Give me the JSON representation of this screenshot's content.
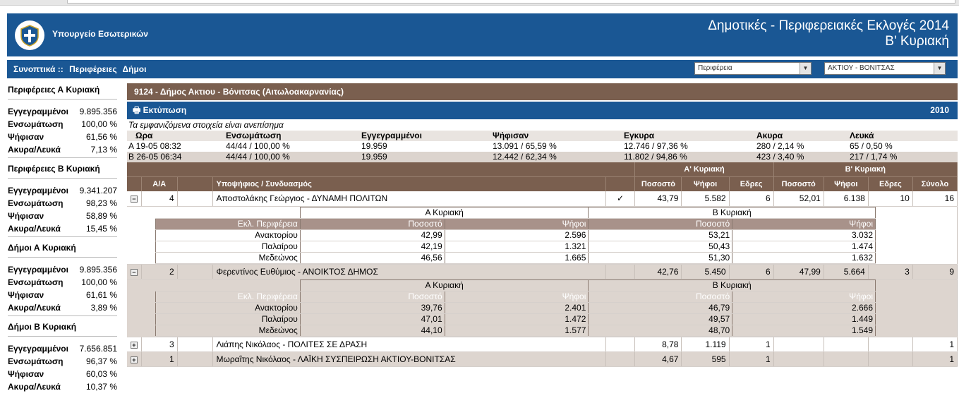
{
  "header": {
    "ministry": "Υπουργείο Εσωτερικών",
    "title_line1": "Δημοτικές - Περιφερειακές Εκλογές 2014",
    "title_line2": "Β' Κυριακή",
    "colors": {
      "primary": "#1a5794",
      "brown": "#7a5f4f"
    }
  },
  "nav": {
    "summary": "Συνοπτικά ::",
    "regions": "Περιφέρειες",
    "municipalities": "Δήμοι",
    "select_region": "Περιφέρεια",
    "select_municipality": "ΑΚΤΙΟΥ - ΒΟΝΙΤΣΑΣ"
  },
  "sidebar": {
    "sections": [
      {
        "title": "Περιφέρειες Α Κυριακή",
        "rows": [
          {
            "label": "Εγγεγραμμένοι",
            "value": "9.895.356"
          },
          {
            "label": "Ενσωμάτωση",
            "value": "100,00 %"
          },
          {
            "label": "Ψήφισαν",
            "value": "61,56 %"
          },
          {
            "label": "Ακυρα/Λευκά",
            "value": "7,13 %"
          }
        ]
      },
      {
        "title": "Περιφέρειες Β Κυριακή",
        "rows": [
          {
            "label": "Εγγεγραμμένοι",
            "value": "9.341.207"
          },
          {
            "label": "Ενσωμάτωση",
            "value": "98,23 %"
          },
          {
            "label": "Ψήφισαν",
            "value": "58,89 %"
          },
          {
            "label": "Ακυρα/Λευκά",
            "value": "15,45 %"
          }
        ]
      },
      {
        "title": "Δήμοι Α Κυριακή",
        "rows": [
          {
            "label": "Εγγεγραμμένοι",
            "value": "9.895.356"
          },
          {
            "label": "Ενσωμάτωση",
            "value": "100,00 %"
          },
          {
            "label": "Ψήφισαν",
            "value": "61,61 %"
          },
          {
            "label": "Ακυρα/Λευκά",
            "value": "3,89 %"
          }
        ]
      },
      {
        "title": "Δήμοι Β Κυριακή",
        "rows": [
          {
            "label": "Εγγεγραμμένοι",
            "value": "7.656.851"
          },
          {
            "label": "Ενσωμάτωση",
            "value": "96,37 %"
          },
          {
            "label": "Ψήφισαν",
            "value": "60,03 %"
          },
          {
            "label": "Ακυρα/Λευκά",
            "value": "10,37 %"
          }
        ]
      }
    ]
  },
  "main": {
    "district": "9124 - Δήμος Ακτιου - Βόνιτσας (Αιτωλοακαρνανίας)",
    "print": "Εκτύπωση",
    "year": "2010",
    "notice": "Τα εμφανιζόμενα στοιχεία είναι ανεπίσημα",
    "summary_headers": [
      "Ωρα",
      "Ενσωμάτωση",
      "Εγγεγραμμένοι",
      "Ψήφισαν",
      "Εγκυρα",
      "Ακυρα",
      "Λευκά"
    ],
    "summary_rows": [
      {
        "round": "Α",
        "time": "19-05 08:32",
        "integration": "44/44 / 100,00 %",
        "registered": "19.959",
        "voted": "13.091 / 65,59 %",
        "valid": "12.746 / 97,36 %",
        "invalid": "280 / 2,14 %",
        "blank": "65 / 0,50 %"
      },
      {
        "round": "Β",
        "time": "26-05 06:34",
        "integration": "44/44 / 100,00 %",
        "registered": "19.959",
        "voted": "12.442 / 62,34 %",
        "valid": "11.802 / 94,86 %",
        "invalid": "423 / 3,40 %",
        "blank": "217 / 1,74 %"
      }
    ],
    "results_headers": {
      "round_a": "Α' Κυριακή",
      "round_b": "Β' Κυριακή",
      "aa": "Α/Α",
      "candidate": "Υποψήφιος / Συνδυασμός",
      "pct": "Ποσοστό",
      "votes": "Ψήφοι",
      "seats": "Εδρες",
      "total": "Σύνολο"
    },
    "detail_headers": {
      "round_a": "Α Κυριακή",
      "round_b": "Β Κυριακή",
      "district": "Εκλ. Περιφέρεια",
      "pct": "Ποσοστό",
      "votes": "Ψήφοι"
    },
    "candidates": [
      {
        "expander": "⊟",
        "aa": "4",
        "name": "Αποστολάκης Γεώργιος - ΔΥΝΑΜΗ ΠΟΛΙΤΩΝ",
        "mark": "✓",
        "a_pct": "43,79",
        "a_votes": "5.582",
        "a_seats": "6",
        "b_pct": "52,01",
        "b_votes": "6.138",
        "b_seats": "10",
        "total": "16",
        "details": [
          {
            "district": "Ανακτορίου",
            "a_pct": "42,99",
            "a_votes": "2.596",
            "b_pct": "53,21",
            "b_votes": "3.032"
          },
          {
            "district": "Παλαίρου",
            "a_pct": "42,19",
            "a_votes": "1.321",
            "b_pct": "50,43",
            "b_votes": "1.474"
          },
          {
            "district": "Μεδεώνος",
            "a_pct": "46,56",
            "a_votes": "1.665",
            "b_pct": "51,30",
            "b_votes": "1.632"
          }
        ]
      },
      {
        "expander": "⊟",
        "aa": "2",
        "name": "Φερεντίνος Ευθύμιος - ΑΝΟΙΚΤΟΣ ΔΗΜΟΣ",
        "mark": "",
        "a_pct": "42,76",
        "a_votes": "5.450",
        "a_seats": "6",
        "b_pct": "47,99",
        "b_votes": "5.664",
        "b_seats": "3",
        "total": "9",
        "details": [
          {
            "district": "Ανακτορίου",
            "a_pct": "39,76",
            "a_votes": "2.401",
            "b_pct": "46,79",
            "b_votes": "2.666"
          },
          {
            "district": "Παλαίρου",
            "a_pct": "47,01",
            "a_votes": "1.472",
            "b_pct": "49,57",
            "b_votes": "1.449"
          },
          {
            "district": "Μεδεώνος",
            "a_pct": "44,10",
            "a_votes": "1.577",
            "b_pct": "48,70",
            "b_votes": "1.549"
          }
        ]
      },
      {
        "expander": "⊞",
        "aa": "3",
        "name": "Λιάπης Νικόλαος - ΠΟΛΙΤΕΣ ΣΕ ΔΡΑΣΗ",
        "mark": "",
        "a_pct": "8,78",
        "a_votes": "1.119",
        "a_seats": "1",
        "b_pct": "",
        "b_votes": "",
        "b_seats": "",
        "total": "1",
        "details": []
      },
      {
        "expander": "⊞",
        "aa": "1",
        "name": "Μωραΐτης Νικόλαος - ΛΑΪΚΗ ΣΥΣΠΕΙΡΩΣΗ ΑΚΤΙΟΥ-ΒΟΝΙΤΣΑΣ",
        "mark": "",
        "a_pct": "4,67",
        "a_votes": "595",
        "a_seats": "1",
        "b_pct": "",
        "b_votes": "",
        "b_seats": "",
        "total": "1",
        "details": []
      }
    ]
  }
}
